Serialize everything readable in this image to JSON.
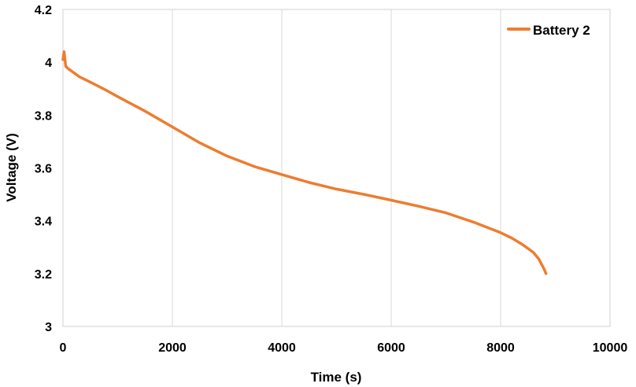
{
  "chart_data": {
    "type": "line",
    "xlabel": "Time (s)",
    "ylabel": "Voltage (V)",
    "xlim": [
      0,
      10000
    ],
    "ylim": [
      3,
      4.2
    ],
    "xticks": [
      0,
      2000,
      4000,
      6000,
      8000,
      10000
    ],
    "yticks": [
      3,
      3.2,
      3.4,
      3.6,
      3.8,
      4,
      4.2
    ],
    "xtick_labels": [
      "0",
      "2000",
      "4000",
      "6000",
      "8000",
      "10000"
    ],
    "ytick_labels": [
      "3",
      "3.2",
      "3.4",
      "3.6",
      "3.8",
      "4",
      "4.2"
    ],
    "grid": "vertical",
    "legend": "top-right",
    "series": [
      {
        "name": "Battery 2",
        "color": "#ED7D31",
        "x": [
          0,
          20,
          50,
          100,
          200,
          300,
          500,
          800,
          1000,
          1500,
          2000,
          2500,
          3000,
          3500,
          4000,
          4500,
          5000,
          5500,
          6000,
          6500,
          7000,
          7500,
          8000,
          8200,
          8400,
          8500,
          8600,
          8700,
          8750,
          8800,
          8830
        ],
        "y": [
          4.01,
          4.04,
          3.985,
          3.975,
          3.96,
          3.945,
          3.925,
          3.893,
          3.87,
          3.815,
          3.755,
          3.695,
          3.645,
          3.605,
          3.575,
          3.545,
          3.52,
          3.5,
          3.478,
          3.455,
          3.43,
          3.395,
          3.355,
          3.335,
          3.31,
          3.295,
          3.28,
          3.255,
          3.235,
          3.215,
          3.2
        ]
      }
    ]
  }
}
